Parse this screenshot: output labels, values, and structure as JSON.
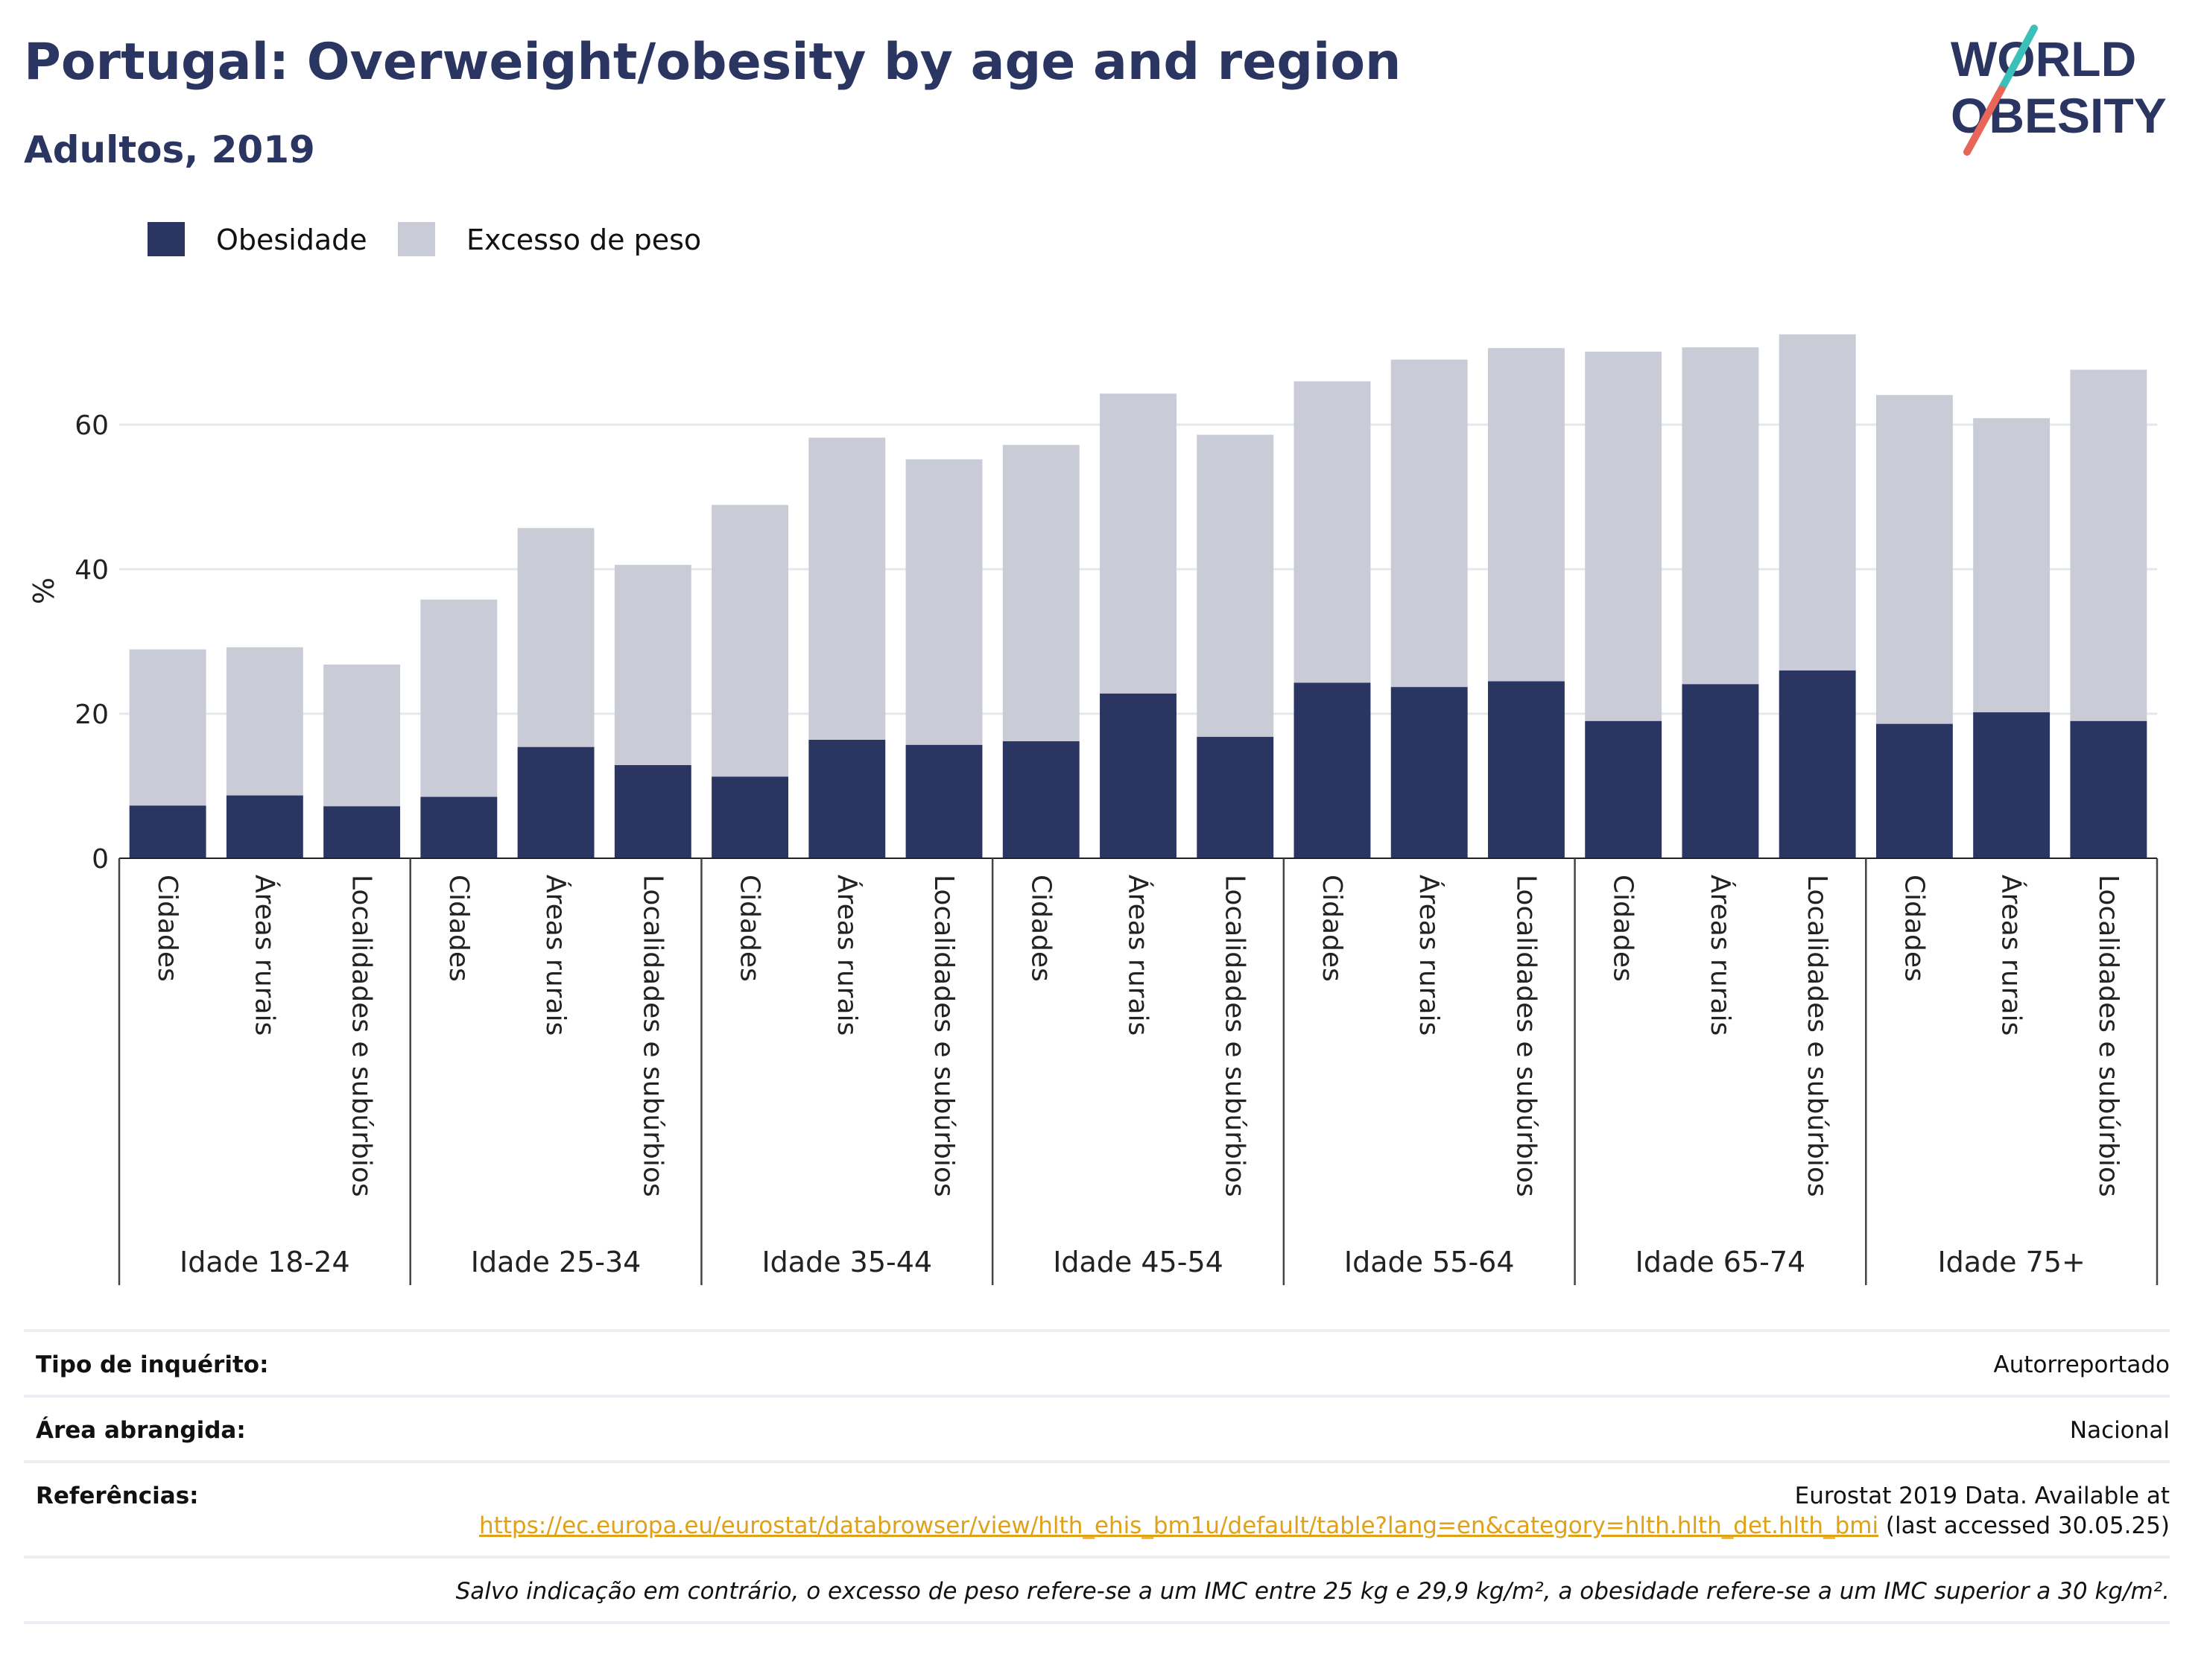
{
  "header": {
    "title": "Portugal: Overweight/obesity by age and region",
    "subtitle": "Adultos, 2019"
  },
  "logo": {
    "line1": "WORLD",
    "line2": "OBESITY",
    "accent_teal": "#3bbfb9",
    "accent_coral": "#e8655a",
    "text_color": "#2a3562"
  },
  "legend": [
    {
      "label": "Obesidade",
      "color": "#2a3562"
    },
    {
      "label": "Excesso de peso",
      "color": "#c9cbd7"
    }
  ],
  "chart_data": {
    "type": "bar",
    "stacked": true,
    "ylabel": "%",
    "ylim": [
      0,
      75
    ],
    "yticks": [
      0,
      20,
      40,
      60
    ],
    "grid": true,
    "legend_position": "top-left",
    "groups": [
      "Idade 18-24",
      "Idade 25-34",
      "Idade 35-44",
      "Idade 45-54",
      "Idade 55-64",
      "Idade 65-74",
      "Idade 75+"
    ],
    "categories": [
      "Cidades",
      "Áreas rurais",
      "Localidades e subúrbios"
    ],
    "series": [
      {
        "name": "Obesidade",
        "color": "#2a3562",
        "values": [
          [
            7.3,
            8.7,
            7.2
          ],
          [
            8.5,
            15.4,
            12.9
          ],
          [
            11.3,
            16.4,
            15.7
          ],
          [
            16.2,
            22.8,
            16.8
          ],
          [
            24.3,
            23.7,
            24.5
          ],
          [
            19.0,
            24.1,
            26.0
          ],
          [
            18.6,
            20.2,
            19.0
          ]
        ]
      },
      {
        "name": "Excesso de peso",
        "color": "#c9cbd7",
        "values": [
          [
            21.6,
            20.5,
            19.6
          ],
          [
            27.3,
            30.3,
            27.7
          ],
          [
            37.6,
            41.8,
            39.5
          ],
          [
            41.0,
            41.5,
            41.8
          ],
          [
            41.7,
            45.3,
            46.1
          ],
          [
            51.1,
            46.6,
            46.5
          ],
          [
            45.5,
            40.7,
            48.6
          ]
        ]
      }
    ]
  },
  "info": {
    "survey_type": {
      "label": "Tipo de inquérito:",
      "value": "Autorreportado"
    },
    "coverage": {
      "label": "Área abrangida:",
      "value": "Nacional"
    },
    "references": {
      "label": "Referências:",
      "line1": "Eurostat 2019 Data. Available at",
      "url": "https://ec.europa.eu/eurostat/databrowser/view/hlth_ehis_bm1u/default/table?lang=en&category=hlth.hlth_det.hlth_bmi",
      "suffix": " (last accessed 30.05.25)"
    },
    "note": "Salvo indicação em contrário, o excesso de peso refere-se a um IMC entre 25 kg e 29,9 kg/m², a obesidade refere-se a um IMC superior a 30 kg/m²."
  }
}
